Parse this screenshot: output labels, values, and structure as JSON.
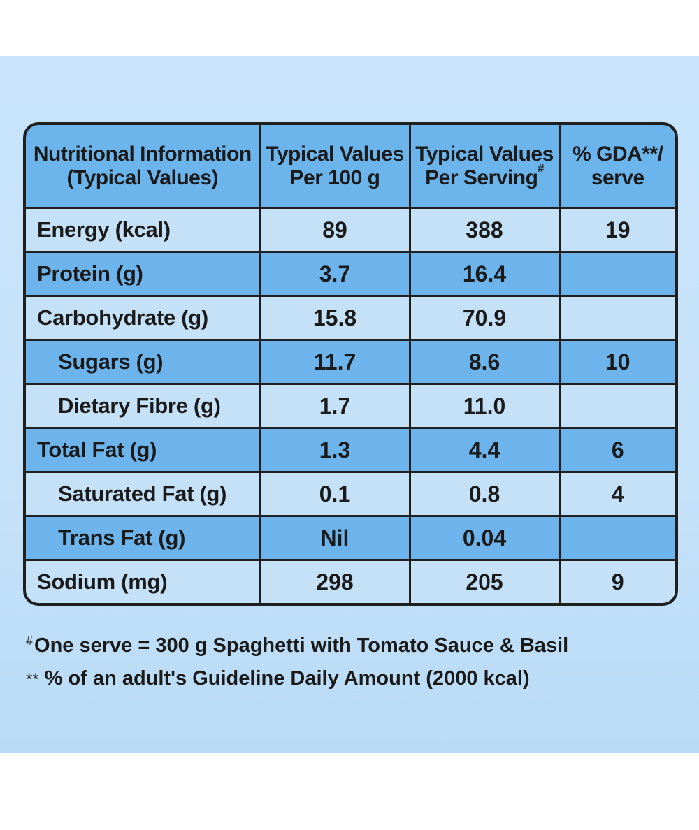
{
  "table": {
    "headers": [
      {
        "line1": "Nutritional Information",
        "line2": "(Typical Values)",
        "mark": ""
      },
      {
        "line1": "Typical Values",
        "line2": "Per 100 g",
        "mark": ""
      },
      {
        "line1": "Typical Values",
        "line2": "Per Serving",
        "mark": "#"
      },
      {
        "line1": "% GDA**/",
        "line2": "serve",
        "mark": ""
      }
    ],
    "rows": [
      {
        "nutrient": "Energy (kcal)",
        "per_100g": "89",
        "per_serving": "388",
        "gda": "19",
        "indent": false
      },
      {
        "nutrient": "Protein (g)",
        "per_100g": "3.7",
        "per_serving": "16.4",
        "gda": "",
        "indent": false
      },
      {
        "nutrient": "Carbohydrate (g)",
        "per_100g": "15.8",
        "per_serving": "70.9",
        "gda": "",
        "indent": false
      },
      {
        "nutrient": "Sugars (g)",
        "per_100g": "11.7",
        "per_serving": "8.6",
        "gda": "10",
        "indent": true
      },
      {
        "nutrient": "Dietary Fibre (g)",
        "per_100g": "1.7",
        "per_serving": "11.0",
        "gda": "",
        "indent": true
      },
      {
        "nutrient": "Total Fat (g)",
        "per_100g": "1.3",
        "per_serving": "4.4",
        "gda": "6",
        "indent": false
      },
      {
        "nutrient": "Saturated Fat (g)",
        "per_100g": "0.1",
        "per_serving": "0.8",
        "gda": "4",
        "indent": true
      },
      {
        "nutrient": "Trans Fat (g)",
        "per_100g": "Nil",
        "per_serving": "0.04",
        "gda": "",
        "indent": true
      },
      {
        "nutrient": "Sodium (mg)",
        "per_100g": "298",
        "per_serving": "205",
        "gda": "9",
        "indent": false
      }
    ]
  },
  "footnotes": {
    "serve_mark": "#",
    "serve_text": "One serve = 300 g Spaghetti with Tomato Sauce & Basil",
    "gda_mark": "**",
    "gda_text": "% of an adult's Guideline Daily Amount (2000 kcal)"
  },
  "colors": {
    "background": "#c6e2f9",
    "header_fill": "#6cb4ec",
    "row_light": "#c5e1f8",
    "row_dark": "#6db4ec",
    "border": "#1f1f1f"
  }
}
